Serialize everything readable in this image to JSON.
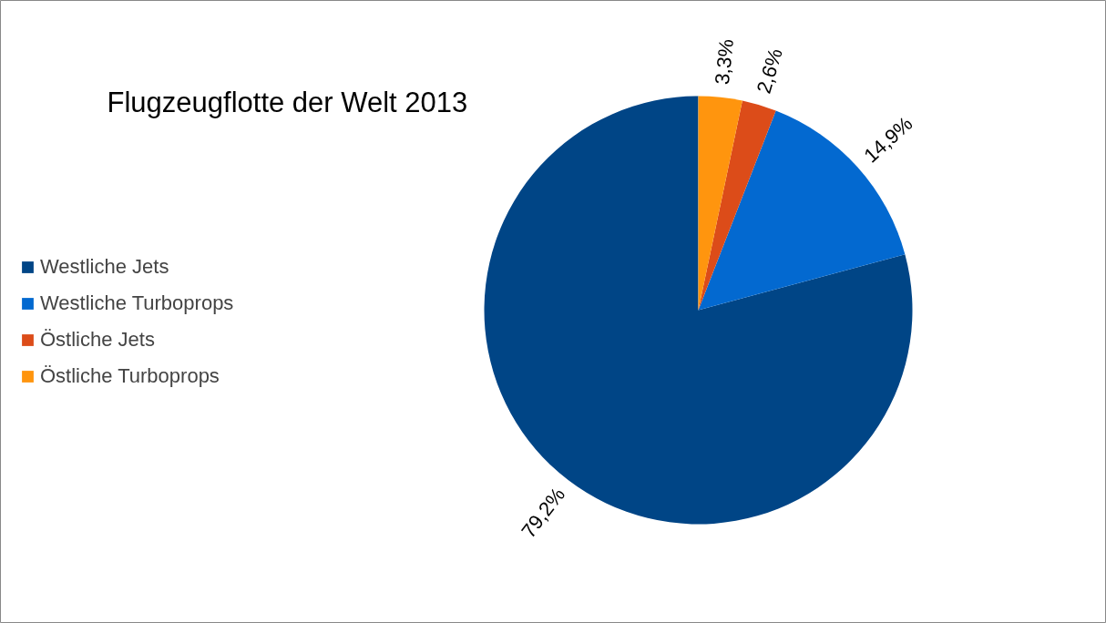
{
  "chart_data": {
    "type": "pie",
    "title": "Flugzeugflotte der Welt 2013",
    "categories": [
      "Westliche Jets",
      "Westliche Turboprops",
      "Östliche Jets",
      "Östliche Turboprops"
    ],
    "values": [
      79.2,
      14.9,
      2.6,
      3.3
    ],
    "value_labels": [
      "79,2%",
      "14,9%",
      "2,6%",
      "3,3%"
    ],
    "colors": [
      "#004586",
      "#0369d0",
      "#dc4c19",
      "#ff950e"
    ],
    "legend": "left"
  }
}
